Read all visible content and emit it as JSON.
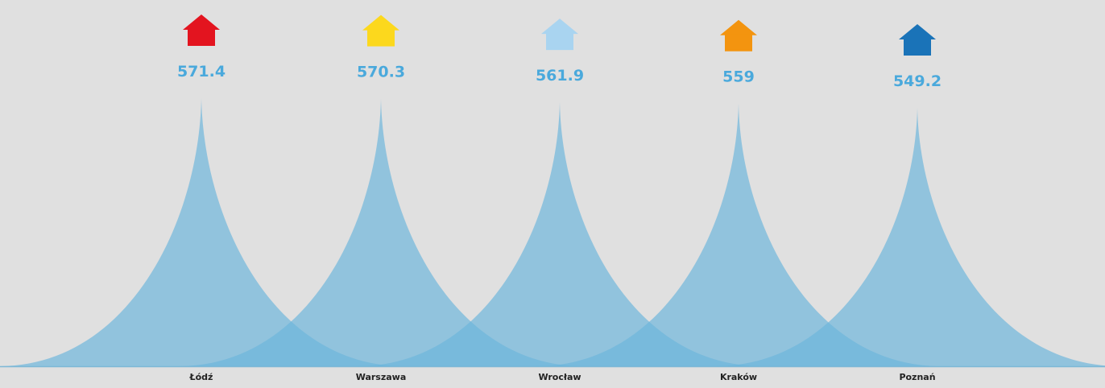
{
  "chart_data": {
    "type": "bar",
    "title": "",
    "xlabel": "",
    "ylabel": "",
    "categories": [
      "Łódź",
      "Warszawa",
      "Wrocław",
      "Kraków",
      "Poznań"
    ],
    "values": [
      571.4,
      570.3,
      561.9,
      559,
      549.2
    ],
    "value_labels": [
      "571.4",
      "570.3",
      "561.9",
      "559",
      "549.2"
    ],
    "ylim": [
      0,
      600
    ],
    "grid": false,
    "legend": "none",
    "shape": "spike",
    "icons": [
      "house-icon",
      "house-icon",
      "house-icon",
      "house-icon",
      "house-icon"
    ],
    "icon_colors": [
      "#e3141f",
      "#fcd81d",
      "#a9d4f0",
      "#f3940f",
      "#1a73b8"
    ],
    "spike_color": "#6cb6db",
    "label_color": "#4aa9dc",
    "background": "#e0e0e0"
  }
}
